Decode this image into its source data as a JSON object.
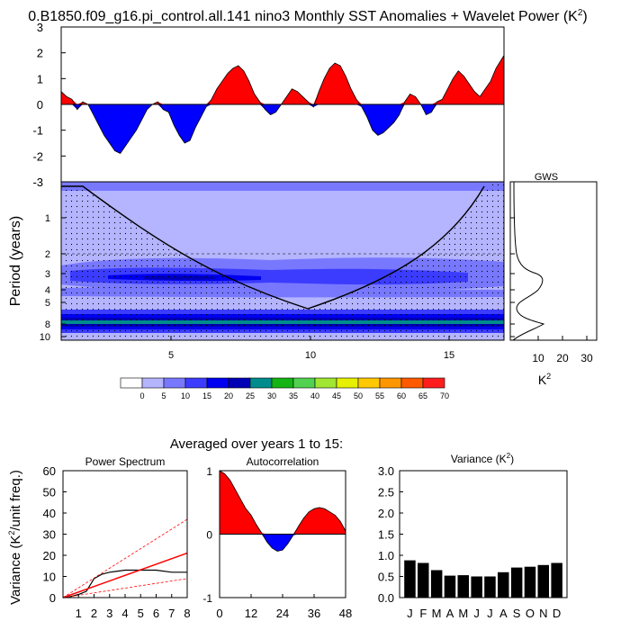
{
  "main_title": "0.B1850.f09_g16.pi_control.all.141 nino3 Monthly SST Anomalies + Wavelet Power (K",
  "main_title_sup": "2",
  "main_title_close": ")",
  "colors": {
    "positive": "#ff0000",
    "negative": "#0000ff",
    "palette": [
      "#ffffff",
      "#b4b4ff",
      "#7878ff",
      "#3c3cff",
      "#0000f0",
      "#0000b4",
      "#008c8c",
      "#14b414",
      "#50d250",
      "#a0e632",
      "#e6f000",
      "#ffc800",
      "#ff9600",
      "#ff5a00",
      "#ff1e1e"
    ]
  },
  "chart_data": [
    {
      "type": "area",
      "panel": "sst-anomaly-timeseries",
      "yticks": [
        3,
        2,
        1,
        0,
        -1,
        -2,
        -3
      ],
      "ylim": [
        -3,
        3
      ],
      "xlim": [
        0.5,
        17
      ],
      "x": [
        0.5,
        0.7,
        0.9,
        1.1,
        1.3,
        1.5,
        1.7,
        1.9,
        2.1,
        2.3,
        2.5,
        2.7,
        2.9,
        3.1,
        3.3,
        3.5,
        3.7,
        3.9,
        4.1,
        4.3,
        4.5,
        4.7,
        4.9,
        5.1,
        5.3,
        5.5,
        5.7,
        5.9,
        6.1,
        6.3,
        6.5,
        6.7,
        6.9,
        7.1,
        7.3,
        7.5,
        7.7,
        7.9,
        8.1,
        8.3,
        8.5,
        8.7,
        8.9,
        9.1,
        9.3,
        9.5,
        9.7,
        9.9,
        10.1,
        10.3,
        10.5,
        10.7,
        10.9,
        11.1,
        11.3,
        11.5,
        11.7,
        11.9,
        12.1,
        12.3,
        12.5,
        12.7,
        12.9,
        13.1,
        13.3,
        13.5,
        13.7,
        13.9,
        14.1,
        14.3,
        14.5,
        14.7,
        14.9,
        15.1,
        15.3,
        15.5,
        15.7,
        15.9,
        16.1,
        16.3,
        16.5,
        16.7,
        17.0
      ],
      "y": [
        0.5,
        0.3,
        0.2,
        -0.2,
        0.1,
        0.0,
        -0.4,
        -0.8,
        -1.2,
        -1.5,
        -1.8,
        -1.9,
        -1.6,
        -1.3,
        -1.0,
        -0.6,
        -0.2,
        0.0,
        0.1,
        -0.2,
        -0.3,
        -0.8,
        -1.2,
        -1.5,
        -1.4,
        -0.9,
        -0.5,
        -0.1,
        0.2,
        0.6,
        0.9,
        1.2,
        1.4,
        1.5,
        1.3,
        0.9,
        0.4,
        0.1,
        -0.2,
        -0.4,
        -0.3,
        0.0,
        0.3,
        0.6,
        0.5,
        0.3,
        0.1,
        -0.1,
        0.5,
        1.0,
        1.4,
        1.6,
        1.5,
        1.1,
        0.6,
        0.2,
        -0.1,
        -0.5,
        -1.0,
        -1.2,
        -1.1,
        -0.9,
        -0.7,
        -0.4,
        0.1,
        0.4,
        0.3,
        0.0,
        -0.4,
        -0.3,
        0.1,
        0.2,
        0.6,
        1.0,
        1.3,
        1.1,
        0.8,
        0.5,
        0.3,
        0.6,
        0.9,
        1.4,
        1.9
      ]
    },
    {
      "type": "heatmap",
      "panel": "wavelet-power",
      "ylabel": "Period (years)",
      "yticks": [
        "1",
        "2",
        "3",
        "4",
        "5",
        "8",
        "10"
      ],
      "xticks": [
        "5",
        "10",
        "15"
      ],
      "colorbar_labels": [
        "0",
        "5",
        "10",
        "15",
        "20",
        "25",
        "30",
        "35",
        "40",
        "45",
        "50",
        "55",
        "60",
        "65",
        "70"
      ]
    },
    {
      "type": "line",
      "panel": "gws",
      "title": "GWS",
      "xticks": [
        "10",
        "20",
        "30"
      ],
      "xlabel": "K",
      "xlabel_sup": "2",
      "xlim": [
        0,
        33
      ]
    },
    {
      "type": "line",
      "panel": "power-spectrum",
      "suptitle": "Averaged over years 1 to 15:",
      "title": "Power Spectrum",
      "ylabel": "Variance (K",
      "ylabel_sup": "2",
      "ylabel_tail": "/unit freq.)",
      "xticks": [
        "1",
        "2",
        "3",
        "4",
        "5",
        "6",
        "7",
        "8"
      ],
      "yticks": [
        "60",
        "50",
        "40",
        "30",
        "20",
        "10",
        "0"
      ],
      "xlim": [
        0,
        8
      ],
      "ylim": [
        0,
        60
      ],
      "series": [
        {
          "x": [
            0,
            0.5,
            1,
            1.5,
            2,
            2.5,
            3,
            4,
            5,
            6,
            7,
            8
          ],
          "values": [
            0,
            0.5,
            1.5,
            3,
            9,
            11,
            12,
            13,
            13,
            13,
            12,
            12
          ]
        },
        {
          "x": [
            0,
            8
          ],
          "values": [
            0,
            21
          ]
        },
        {
          "x": [
            0,
            8
          ],
          "values": [
            0,
            37
          ]
        },
        {
          "x": [
            0,
            8
          ],
          "values": [
            0,
            9
          ]
        }
      ]
    },
    {
      "type": "area",
      "panel": "autocorrelation",
      "title": "Autocorrelation",
      "xticks": [
        "0",
        "12",
        "24",
        "36",
        "48"
      ],
      "yticks": [
        "1",
        "0",
        "-1"
      ],
      "xlim": [
        0,
        48
      ],
      "ylim": [
        -1,
        1
      ],
      "x": [
        0,
        2,
        4,
        6,
        8,
        10,
        12,
        14,
        16,
        18,
        20,
        22,
        24,
        26,
        28,
        30,
        32,
        34,
        36,
        38,
        40,
        42,
        44,
        46,
        48
      ],
      "y": [
        1.0,
        0.95,
        0.85,
        0.7,
        0.55,
        0.4,
        0.3,
        0.15,
        0.02,
        -0.12,
        -0.22,
        -0.27,
        -0.25,
        -0.15,
        -0.02,
        0.12,
        0.25,
        0.35,
        0.4,
        0.42,
        0.4,
        0.35,
        0.3,
        0.2,
        0.05
      ]
    },
    {
      "type": "bar",
      "panel": "monthly-variance",
      "title": "Variance (K",
      "title_sup": "2",
      "title_close": ")",
      "categories": [
        "J",
        "F",
        "M",
        "A",
        "M",
        "J",
        "J",
        "A",
        "S",
        "O",
        "N",
        "D"
      ],
      "values": [
        0.88,
        0.82,
        0.65,
        0.52,
        0.53,
        0.5,
        0.5,
        0.6,
        0.71,
        0.73,
        0.77,
        0.82
      ],
      "yticks": [
        "3.0",
        "2.5",
        "2.0",
        "1.5",
        "1.0",
        "0.5",
        "0.0"
      ],
      "ylim": [
        0,
        3
      ]
    }
  ]
}
